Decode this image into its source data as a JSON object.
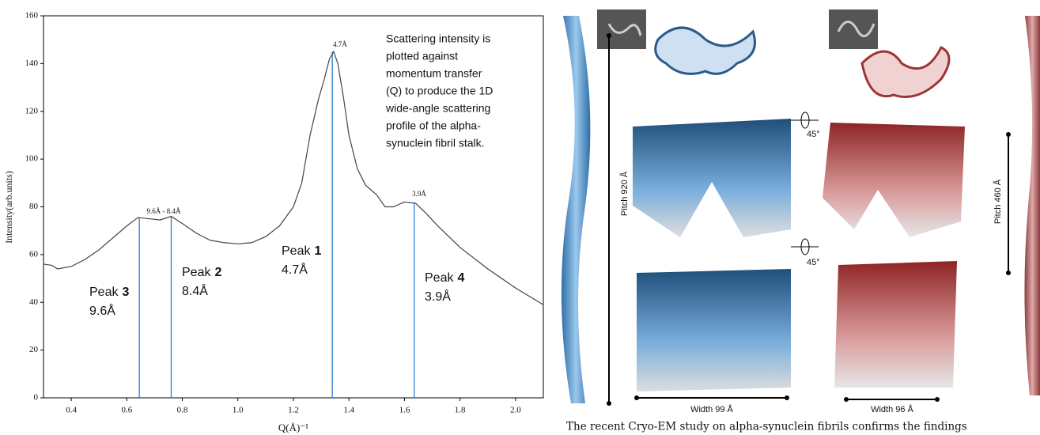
{
  "chart_data": {
    "type": "line",
    "x_label": "Q(Å)⁻¹",
    "y_label": "Intensity(arb.units)",
    "x": [
      0.3,
      0.33,
      0.35,
      0.4,
      0.45,
      0.5,
      0.55,
      0.6,
      0.64,
      0.68,
      0.72,
      0.76,
      0.8,
      0.85,
      0.9,
      0.95,
      1.0,
      1.05,
      1.1,
      1.15,
      1.2,
      1.23,
      1.26,
      1.29,
      1.31,
      1.33,
      1.345,
      1.36,
      1.38,
      1.4,
      1.43,
      1.46,
      1.5,
      1.53,
      1.56,
      1.6,
      1.64,
      1.68,
      1.72,
      1.8,
      1.9,
      2.0,
      2.1
    ],
    "values": [
      56,
      55.5,
      54,
      55,
      58,
      62,
      67,
      72,
      75.5,
      75,
      74.5,
      76,
      73,
      69,
      66,
      65,
      64.5,
      65,
      67.5,
      72,
      80,
      90,
      110,
      125,
      133,
      142,
      145,
      140,
      126,
      110,
      96,
      89,
      85,
      80,
      80,
      82,
      81.5,
      77,
      72,
      63,
      54,
      46,
      39
    ],
    "color": "#444",
    "xlim": [
      0.3,
      2.1
    ],
    "xticks": [
      0.4,
      0.6,
      0.8,
      {
        "value": 1,
        "label": "1.0"
      },
      1.2,
      1.4,
      1.6,
      1.8,
      {
        "value": 2,
        "label": "2.0"
      }
    ],
    "ylim": [
      0,
      160
    ],
    "yticks": [
      0,
      20,
      40,
      60,
      80,
      100,
      120,
      140,
      160
    ],
    "peaks": [
      {
        "x": 0.645,
        "y": 75.5
      },
      {
        "x": 0.76,
        "y": 76
      },
      {
        "x": 1.34,
        "y": 145
      },
      {
        "x": 1.635,
        "y": 81.5
      }
    ],
    "peak_color": "#2a7fd4",
    "annotations": [
      "9.6Å - 8.4Å",
      "4.7Å",
      "3.9Å"
    ],
    "peak_labels": [
      {
        "name": "Peak",
        "number": "3",
        "value": "9.6Å"
      },
      {
        "name": "Peak",
        "number": "2",
        "value": "8.4Å"
      },
      {
        "name": "Peak",
        "number": "1",
        "value": "4.7Å"
      },
      {
        "name": "Peak",
        "number": "4",
        "value": "3.9Å"
      }
    ],
    "note": [
      "Scattering intensity is",
      "plotted against",
      "momentum transfer",
      "(Q) to produce the 1D",
      "wide-angle scattering",
      "profile of the alpha-",
      "synuclein fibril stalk."
    ]
  },
  "figure": {
    "pitch_left": "Pitch 920 Å",
    "pitch_right": "Pitch 460 Å",
    "rotation_1": "45°",
    "rotation_2": "45°",
    "width_left": "Width  99 Å",
    "width_right": "Width  96 Å",
    "caption": "The recent Cryo-EM study on alpha-synuclein fibrils confirms the findings"
  }
}
